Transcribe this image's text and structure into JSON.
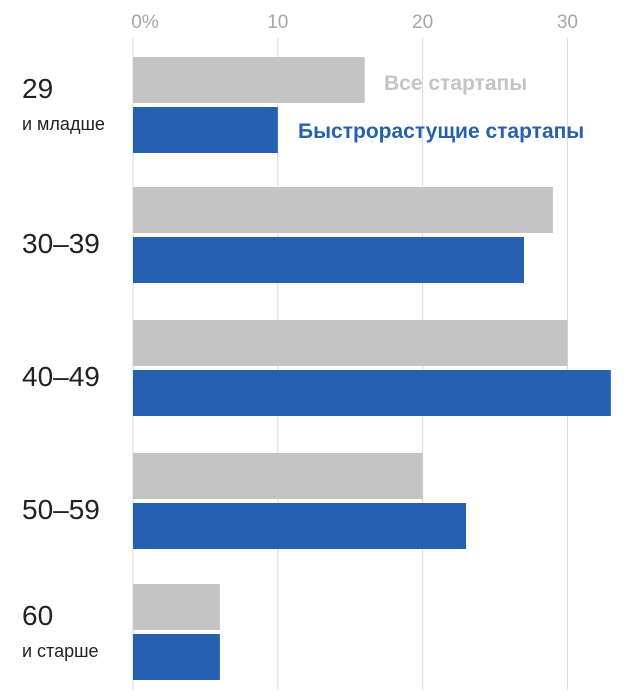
{
  "chart_data": {
    "type": "bar",
    "orientation": "horizontal",
    "categories": [
      {
        "main": "29",
        "sub": "и младше"
      },
      {
        "main": "30–39",
        "sub": ""
      },
      {
        "main": "40–49",
        "sub": ""
      },
      {
        "main": "50–59",
        "sub": ""
      },
      {
        "main": "60",
        "sub": "и старше"
      }
    ],
    "series": [
      {
        "name": "Все стартапы",
        "color": "#c4c4c4",
        "values": [
          16,
          29,
          30,
          20,
          6
        ]
      },
      {
        "name": "Быстрорастущие стартапы",
        "color": "#2660b0",
        "values": [
          10,
          27,
          33,
          23,
          6
        ]
      }
    ],
    "xticks": [
      {
        "value": 0,
        "label": "0%"
      },
      {
        "value": 10,
        "label": "10"
      },
      {
        "value": 20,
        "label": "20"
      },
      {
        "value": 30,
        "label": "30"
      }
    ],
    "xlim": [
      0,
      33.7
    ],
    "grid": true,
    "legend_placement": "inline-top"
  }
}
